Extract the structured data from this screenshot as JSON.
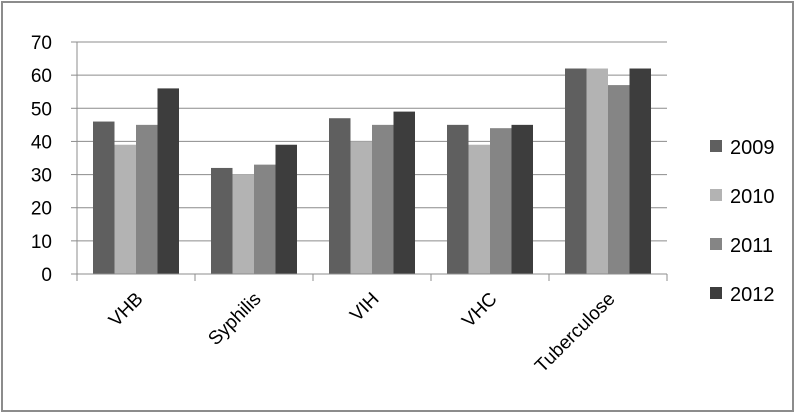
{
  "chart_data": {
    "type": "bar",
    "title": "",
    "xlabel": "",
    "ylabel": "",
    "categories": [
      "VHB",
      "Syphilis",
      "VIH",
      "VHC",
      "Tuberculose"
    ],
    "series": [
      {
        "name": "2009",
        "values": [
          46,
          32,
          47,
          45,
          62
        ],
        "color": "#5f5f5f"
      },
      {
        "name": "2010",
        "values": [
          39,
          30,
          40,
          39,
          62
        ],
        "color": "#b3b3b3"
      },
      {
        "name": "2011",
        "values": [
          45,
          33,
          45,
          44,
          57
        ],
        "color": "#858585"
      },
      {
        "name": "2012",
        "values": [
          56,
          39,
          49,
          45,
          62
        ],
        "color": "#3d3d3d"
      }
    ],
    "ylim": [
      0,
      70
    ],
    "yticks": [
      0,
      10,
      20,
      30,
      40,
      50,
      60,
      70
    ],
    "grid": true,
    "legend_position": "right"
  }
}
